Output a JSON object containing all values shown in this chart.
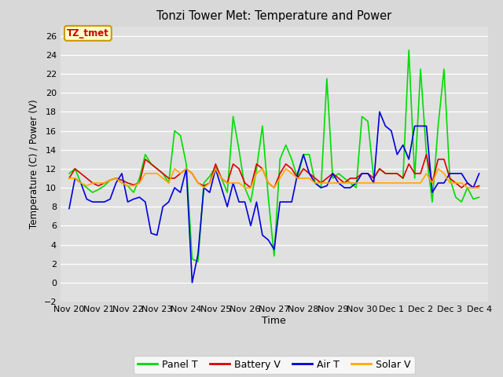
{
  "title": "Tonzi Tower Met: Temperature and Power",
  "xlabel": "Time",
  "ylabel": "Temperature (C) / Power (V)",
  "ylim": [
    -2,
    27
  ],
  "yticks": [
    -2,
    0,
    2,
    4,
    6,
    8,
    10,
    12,
    14,
    16,
    18,
    20,
    22,
    24,
    26
  ],
  "background_color": "#d8d8d8",
  "plot_bg_color": "#e0e0e0",
  "legend_bg": "#ffffff",
  "annotation_text": "TZ_tmet",
  "annotation_bg": "#ffffcc",
  "annotation_border": "#cc9900",
  "annotation_color": "#cc0000",
  "x_labels": [
    "Nov 20",
    "Nov 21",
    "Nov 22",
    "Nov 23",
    "Nov 24",
    "Nov 25",
    "Nov 26",
    "Nov 27",
    "Nov 28",
    "Nov 29",
    "Nov 30",
    "Dec 1",
    "Dec 2",
    "Dec 3",
    "Dec 4"
  ],
  "panel_t": [
    11.5,
    12.0,
    10.5,
    10.0,
    9.5,
    9.8,
    10.2,
    10.8,
    11.0,
    10.5,
    10.2,
    9.5,
    11.0,
    13.5,
    12.5,
    12.0,
    11.5,
    10.5,
    16.0,
    15.5,
    12.5,
    2.5,
    2.2,
    10.5,
    11.2,
    12.2,
    11.0,
    9.5,
    17.5,
    14.0,
    10.0,
    8.5,
    12.0,
    16.5,
    9.0,
    2.8,
    13.0,
    14.5,
    13.0,
    11.0,
    13.5,
    13.5,
    10.5,
    10.0,
    21.5,
    11.0,
    11.5,
    11.0,
    10.5,
    10.0,
    17.5,
    17.0,
    11.0,
    12.0,
    11.5,
    11.5,
    11.5,
    11.0,
    24.5,
    11.0,
    22.5,
    13.5,
    8.5,
    16.5,
    22.5,
    11.0,
    9.0,
    8.5,
    10.0,
    8.8,
    9.0
  ],
  "battery_v": [
    11.0,
    12.0,
    11.5,
    11.0,
    10.5,
    10.2,
    10.5,
    10.8,
    11.0,
    10.8,
    10.5,
    10.3,
    10.5,
    13.0,
    12.5,
    12.0,
    11.5,
    11.0,
    11.0,
    11.5,
    12.0,
    11.5,
    10.5,
    10.2,
    10.5,
    12.5,
    11.0,
    10.5,
    12.5,
    12.0,
    10.5,
    10.0,
    12.5,
    12.0,
    10.5,
    10.0,
    11.5,
    12.5,
    12.0,
    11.0,
    12.0,
    11.5,
    11.0,
    10.5,
    11.0,
    11.5,
    11.0,
    10.5,
    11.0,
    11.0,
    11.5,
    11.5,
    11.0,
    12.0,
    11.5,
    11.5,
    11.5,
    11.0,
    12.5,
    11.5,
    11.5,
    13.5,
    10.5,
    13.0,
    13.0,
    11.0,
    10.5,
    10.0,
    10.5,
    10.0,
    10.2
  ],
  "air_t": [
    7.8,
    11.0,
    10.5,
    8.8,
    8.5,
    8.5,
    8.5,
    8.8,
    10.5,
    11.5,
    8.5,
    8.8,
    9.0,
    8.5,
    5.2,
    5.0,
    8.0,
    8.5,
    10.0,
    9.5,
    12.0,
    0.0,
    3.0,
    10.0,
    9.5,
    12.0,
    10.0,
    8.0,
    10.5,
    8.5,
    8.5,
    6.0,
    8.5,
    5.0,
    4.5,
    3.5,
    8.5,
    8.5,
    8.5,
    11.5,
    13.5,
    11.5,
    10.5,
    10.0,
    10.2,
    11.5,
    10.5,
    10.0,
    10.0,
    10.5,
    11.5,
    11.5,
    10.5,
    18.0,
    16.5,
    16.0,
    13.5,
    14.5,
    13.0,
    16.5,
    16.5,
    16.5,
    9.5,
    10.5,
    10.5,
    11.5,
    11.5,
    11.5,
    10.5,
    10.0,
    11.5
  ],
  "solar_v": [
    11.0,
    11.0,
    10.5,
    10.2,
    10.5,
    10.5,
    10.5,
    10.8,
    11.0,
    10.5,
    10.2,
    10.2,
    10.5,
    11.5,
    11.5,
    11.5,
    11.0,
    10.5,
    12.0,
    11.5,
    12.0,
    11.5,
    10.5,
    10.0,
    10.5,
    12.0,
    11.0,
    10.5,
    10.5,
    10.5,
    10.0,
    10.0,
    11.5,
    12.0,
    10.5,
    10.0,
    11.0,
    12.0,
    11.5,
    11.0,
    11.0,
    11.0,
    10.5,
    10.5,
    10.5,
    10.5,
    10.5,
    10.5,
    10.5,
    10.5,
    10.5,
    10.5,
    10.5,
    10.5,
    10.5,
    10.5,
    10.5,
    10.5,
    10.5,
    10.5,
    10.5,
    11.5,
    10.5,
    12.0,
    11.5,
    10.5,
    10.5,
    10.5,
    10.0,
    10.0,
    10.0
  ],
  "panel_color": "#00dd00",
  "battery_color": "#dd0000",
  "air_color": "#0000dd",
  "solar_color": "#ffaa00",
  "grid_color": "#ffffff",
  "line_width": 1.2
}
